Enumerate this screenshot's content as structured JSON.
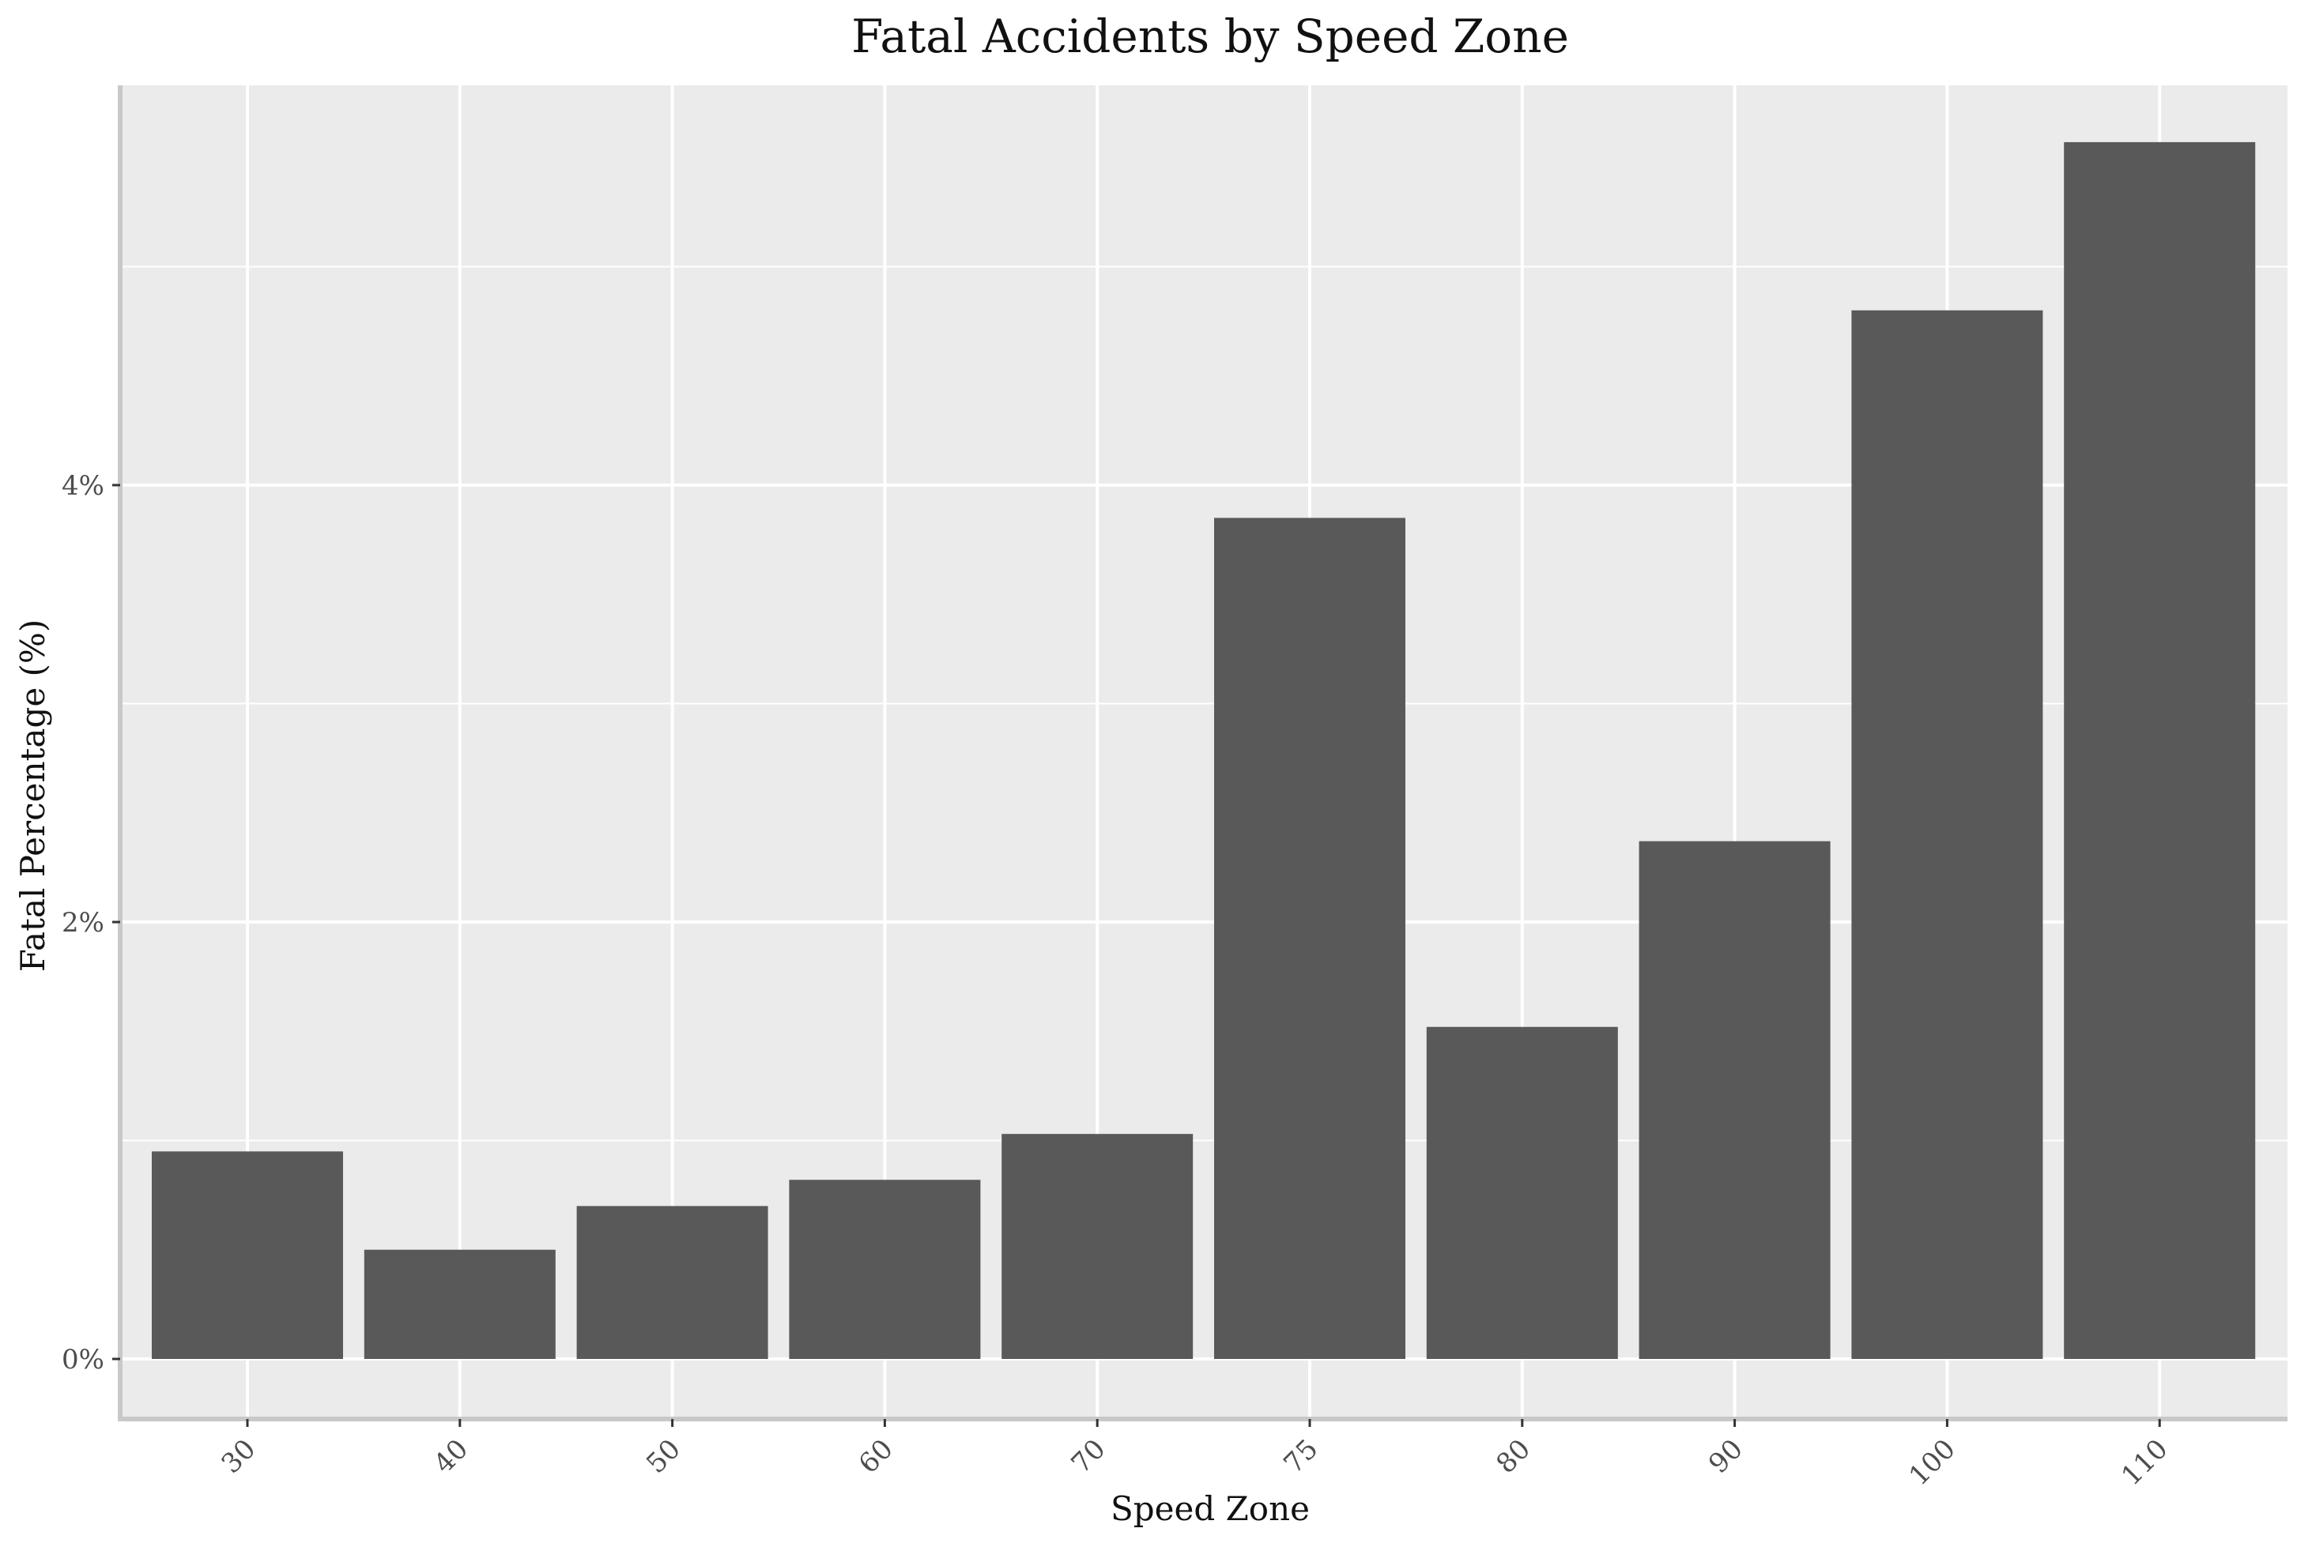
{
  "chart_data": {
    "type": "bar",
    "title": "Fatal Accidents by Speed Zone",
    "xlabel": "Speed Zone",
    "ylabel": "Fatal Percentage (%)",
    "categories": [
      "30",
      "40",
      "50",
      "60",
      "70",
      "75",
      "80",
      "90",
      "100",
      "110"
    ],
    "values": [
      0.95,
      0.5,
      0.7,
      0.82,
      1.03,
      3.85,
      1.52,
      2.37,
      4.8,
      5.57
    ],
    "ylim": [
      -0.25,
      5.85
    ],
    "y_ticks": [
      0,
      2,
      4
    ],
    "y_tick_labels": [
      "0%",
      "2%",
      "4%"
    ],
    "y_minor_ticks": [
      1,
      3,
      5
    ],
    "grid": true,
    "legend": "none",
    "colors": {
      "bar": "#595959",
      "panel": "#ebebeb",
      "grid": "#ffffff",
      "axis_line": "#c8c8c8"
    }
  }
}
